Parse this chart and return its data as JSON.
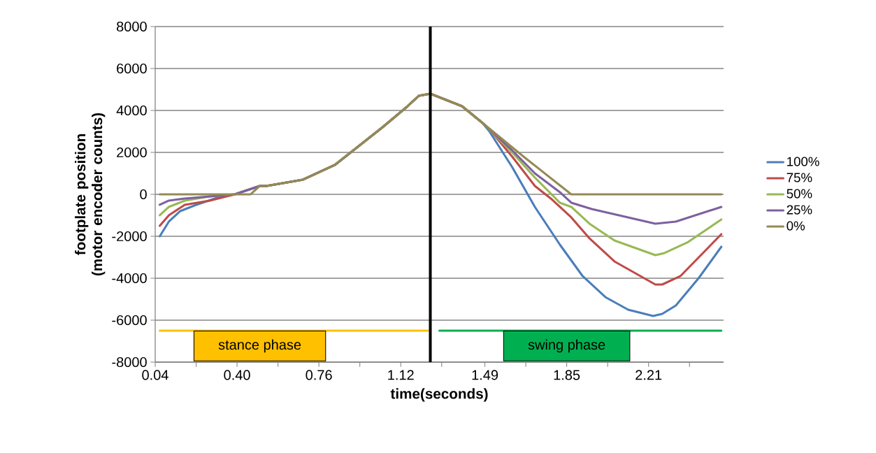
{
  "chart_data": {
    "type": "line",
    "xlabel": "time(seconds)",
    "ylabel": "footplate position (motor encoder counts)",
    "xlim": [
      0.04,
      2.54
    ],
    "ylim": [
      -8000,
      8000
    ],
    "xticks": [
      0.04,
      {
        "value": 0.22,
        "label": null
      },
      {
        "value": 0.4,
        "label": "0.40"
      },
      {
        "value": 0.58,
        "label": null
      },
      0.76,
      {
        "value": 0.94,
        "label": null
      },
      1.12,
      {
        "value": 1.3,
        "label": null
      },
      1.49,
      {
        "value": 1.67,
        "label": null
      },
      1.85,
      {
        "value": 2.03,
        "label": null
      },
      2.21,
      {
        "value": 2.39,
        "label": null
      }
    ],
    "yticks": [
      -8000,
      -6000,
      -4000,
      -2000,
      0,
      2000,
      4000,
      6000,
      8000
    ],
    "grid": "y",
    "legend": "right",
    "marker": "none",
    "line_style": "solid",
    "ref_lines": [
      {
        "axis": "x",
        "value": 1.25,
        "color": "#000000"
      }
    ],
    "annotations": [
      {
        "text": "stance phase",
        "x": 0.5,
        "y": -6500
      },
      {
        "text": "swing phase",
        "x": 1.85,
        "y": -6500
      }
    ],
    "series": [
      {
        "color": "#ffc000",
        "x": [
          0.06,
          1.24
        ],
        "values": [
          -6500,
          -6500
        ]
      },
      {
        "color": "#00b050",
        "x": [
          1.29,
          2.53
        ],
        "values": [
          -6500,
          -6500
        ]
      },
      {
        "name": "100%",
        "color": "#4a7ebb",
        "x": [
          0.06,
          0.1,
          0.15,
          0.22,
          0.33,
          0.39,
          0.5,
          0.53,
          0.69,
          0.83,
          0.9,
          1.04,
          1.15,
          1.2,
          1.25,
          1.39,
          1.48,
          1.51,
          1.61,
          1.71,
          1.82,
          1.92,
          2.02,
          2.12,
          2.23,
          2.27,
          2.33,
          2.43,
          2.53
        ],
        "values": [
          -2000,
          -1300,
          -800,
          -500,
          -100,
          0,
          400,
          400,
          700,
          1400,
          2000,
          3200,
          4200,
          4700,
          4800,
          4200,
          3400,
          3000,
          1300,
          -600,
          -2400,
          -3900,
          -4900,
          -5500,
          -5800,
          -5700,
          -5300,
          -4000,
          -2500
        ]
      },
      {
        "name": "75%",
        "color": "#be4b48",
        "x": [
          0.06,
          0.1,
          0.17,
          0.28,
          0.39,
          0.5,
          0.53,
          0.69,
          0.83,
          0.9,
          1.04,
          1.15,
          1.2,
          1.25,
          1.39,
          1.48,
          1.51,
          1.61,
          1.71,
          1.78,
          1.87,
          1.95,
          2.06,
          2.24,
          2.27,
          2.35,
          2.53
        ],
        "values": [
          -1500,
          -1000,
          -500,
          -300,
          0,
          400,
          400,
          700,
          1400,
          2000,
          3200,
          4200,
          4700,
          4800,
          4200,
          3400,
          3100,
          1800,
          400,
          -200,
          -1100,
          -2100,
          -3200,
          -4300,
          -4300,
          -3900,
          -1900
        ]
      },
      {
        "name": "50%",
        "color": "#98b954",
        "x": [
          0.06,
          0.1,
          0.17,
          0.28,
          0.39,
          0.5,
          0.53,
          0.69,
          0.83,
          0.9,
          1.04,
          1.15,
          1.2,
          1.25,
          1.39,
          1.48,
          1.61,
          1.71,
          1.82,
          1.87,
          1.95,
          2.06,
          2.24,
          2.28,
          2.38,
          2.53
        ],
        "values": [
          -1000,
          -600,
          -300,
          -100,
          0,
          400,
          400,
          700,
          1400,
          2000,
          3200,
          4200,
          4700,
          4800,
          4200,
          3400,
          2000,
          800,
          -400,
          -600,
          -1400,
          -2200,
          -2900,
          -2800,
          -2300,
          -1200
        ]
      },
      {
        "name": "25%",
        "color": "#7d60a0",
        "x": [
          0.06,
          0.1,
          0.17,
          0.28,
          0.39,
          0.5,
          0.53,
          0.69,
          0.83,
          0.9,
          1.04,
          1.15,
          1.2,
          1.25,
          1.39,
          1.48,
          1.61,
          1.71,
          1.82,
          1.87,
          1.96,
          2.24,
          2.33,
          2.53
        ],
        "values": [
          -500,
          -300,
          -200,
          -100,
          0,
          400,
          400,
          700,
          1400,
          2000,
          3200,
          4200,
          4700,
          4800,
          4200,
          3400,
          2100,
          1000,
          100,
          -400,
          -700,
          -1400,
          -1300,
          -600
        ]
      },
      {
        "name": "0%",
        "color": "#948a54",
        "x": [
          0.06,
          0.46,
          0.5,
          0.53,
          0.69,
          0.83,
          0.9,
          1.04,
          1.15,
          1.2,
          1.25,
          1.39,
          1.48,
          1.66,
          1.87,
          2.53
        ],
        "values": [
          0,
          0,
          400,
          400,
          700,
          1400,
          2000,
          3200,
          4200,
          4700,
          4800,
          4200,
          3400,
          1800,
          0,
          0
        ]
      }
    ]
  }
}
